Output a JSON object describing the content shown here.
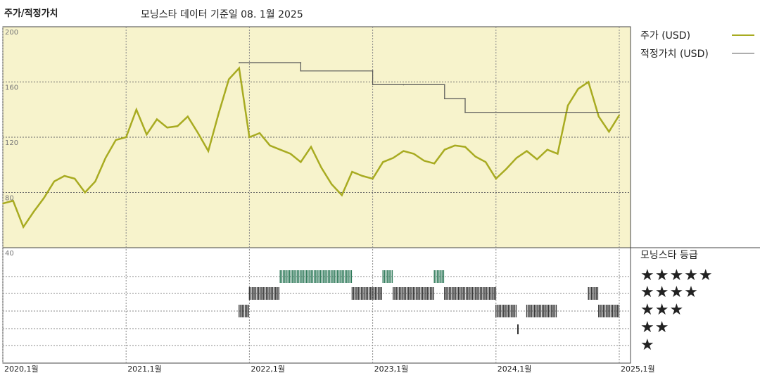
{
  "header": {
    "left_title": "주가/적정가치",
    "subtitle": "모닝스타 데이터 기준일 08. 1월 2025"
  },
  "legend": {
    "price_label": "주가 (USD)",
    "fair_value_label": "적정가치 (USD)",
    "price_color": "#a8ab21",
    "fair_value_color": "#555555"
  },
  "rating_legend": {
    "title": "모닝스타 등급",
    "rows": [
      "★★★★★",
      "★★★★",
      "★★★",
      "★★",
      "★"
    ]
  },
  "chart_data": {
    "type": "line",
    "x_ticks": [
      "2020,1월",
      "2021,1월",
      "2022,1월",
      "2023,1월",
      "2024,1월",
      "2025,1월"
    ],
    "y_ticks": [
      200,
      160,
      120,
      80,
      40
    ],
    "ylim": [
      40,
      200
    ],
    "xlim": [
      "2020-01",
      "2025-01"
    ],
    "plot_background": "#f7f3cc",
    "series": [
      {
        "name": "주가 (USD)",
        "x": [
          "2020-01",
          "2020-02",
          "2020-03",
          "2020-04",
          "2020-05",
          "2020-06",
          "2020-07",
          "2020-08",
          "2020-09",
          "2020-10",
          "2020-11",
          "2020-12",
          "2021-01",
          "2021-02",
          "2021-03",
          "2021-04",
          "2021-05",
          "2021-06",
          "2021-07",
          "2021-08",
          "2021-09",
          "2021-10",
          "2021-11",
          "2021-12",
          "2022-01",
          "2022-02",
          "2022-03",
          "2022-04",
          "2022-05",
          "2022-06",
          "2022-07",
          "2022-08",
          "2022-09",
          "2022-10",
          "2022-11",
          "2022-12",
          "2023-01",
          "2023-02",
          "2023-03",
          "2023-04",
          "2023-05",
          "2023-06",
          "2023-07",
          "2023-08",
          "2023-09",
          "2023-10",
          "2023-11",
          "2023-12",
          "2024-01",
          "2024-02",
          "2024-03",
          "2024-04",
          "2024-05",
          "2024-06",
          "2024-07",
          "2024-08",
          "2024-09",
          "2024-10",
          "2024-11",
          "2024-12",
          "2025-01"
        ],
        "values": [
          72,
          74,
          55,
          66,
          76,
          88,
          92,
          90,
          80,
          88,
          105,
          118,
          120,
          140,
          122,
          133,
          127,
          128,
          135,
          123,
          110,
          137,
          162,
          170,
          120,
          123,
          114,
          111,
          108,
          102,
          113,
          98,
          86,
          78,
          95,
          92,
          90,
          102,
          105,
          110,
          108,
          103,
          101,
          111,
          114,
          113,
          106,
          102,
          90,
          97,
          105,
          110,
          104,
          111,
          108,
          143,
          155,
          160,
          135,
          124,
          136
        ]
      },
      {
        "name": "적정가치 (USD)",
        "x": [
          "2021-12",
          "2022-06",
          "2022-06",
          "2023-01",
          "2023-01",
          "2023-04",
          "2023-04",
          "2023-08",
          "2023-08",
          "2023-10",
          "2023-10",
          "2025-01"
        ],
        "values": [
          174,
          174,
          168,
          168,
          158,
          158,
          158,
          158,
          148,
          148,
          138,
          138
        ]
      }
    ]
  }
}
